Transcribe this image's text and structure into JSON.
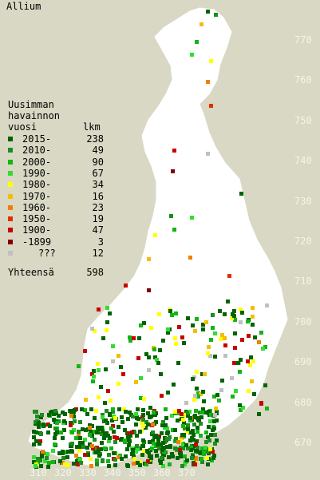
{
  "title": "Allium",
  "legend": {
    "heading": [
      "Uusimman",
      "havainnon",
      "vuosi"
    ],
    "count_header": "lkm",
    "rows": [
      {
        "label": "2015-",
        "count": "238",
        "color": "#006400"
      },
      {
        "label": "2010-",
        "count": "49",
        "color": "#1e8c1e"
      },
      {
        "label": "2000-",
        "count": "90",
        "color": "#14b414"
      },
      {
        "label": "1990-",
        "count": "67",
        "color": "#32dc32"
      },
      {
        "label": "1980-",
        "count": "34",
        "color": "#ffff00"
      },
      {
        "label": "1970-",
        "count": "16",
        "color": "#f0c000"
      },
      {
        "label": "1960-",
        "count": "23",
        "color": "#f08000"
      },
      {
        "label": "1950-",
        "count": "19",
        "color": "#e03000"
      },
      {
        "label": "1900-",
        "count": "47",
        "color": "#c80000"
      },
      {
        "label": "-1899",
        "count": "3",
        "color": "#800000"
      },
      {
        "label": "???",
        "count": "12",
        "color": "#c0c0c0"
      }
    ],
    "total_label": "Yhteensä",
    "total_count": "598"
  },
  "axes": {
    "x_ticks": [
      "310",
      "320",
      "330",
      "340",
      "350",
      "360",
      "370"
    ],
    "y_ticks": [
      "770",
      "760",
      "750",
      "740",
      "730",
      "720",
      "710",
      "700",
      "690",
      "680",
      "670"
    ]
  },
  "colors": {
    "background": "#d8d8c4",
    "land": "#ffffff",
    "border": "#b8b8a8",
    "axis_label": "#f4f4ea"
  }
}
